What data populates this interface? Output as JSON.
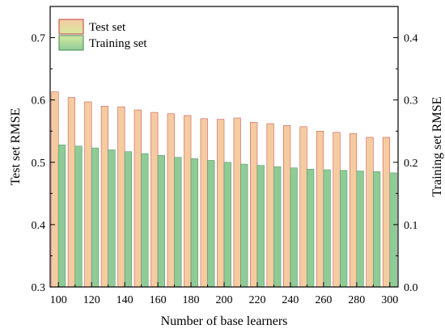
{
  "chart_data": {
    "type": "bar",
    "title": "",
    "xlabel": "Number of base learners",
    "ylabel_left": "Test set RMSE",
    "ylabel_right": "Training set RMSE",
    "categories": [
      100,
      110,
      120,
      130,
      140,
      150,
      160,
      170,
      180,
      190,
      200,
      210,
      220,
      230,
      240,
      250,
      260,
      270,
      280,
      290,
      300
    ],
    "x_tick_labels": [
      "100",
      "120",
      "140",
      "160",
      "180",
      "200",
      "220",
      "240",
      "260",
      "280",
      "300"
    ],
    "ylim_left": [
      0.3,
      0.75
    ],
    "ylim_right": [
      0.0,
      0.45
    ],
    "yticks_left": [
      "0.3",
      "0.4",
      "0.5",
      "0.6",
      "0.7"
    ],
    "yticks_right": [
      "0.0",
      "0.1",
      "0.2",
      "0.3",
      "0.4"
    ],
    "legend_position": "top-left",
    "grid": false,
    "series": [
      {
        "name": "Test set",
        "axis": "left",
        "color": "#f5cba0",
        "edge": "#c85a5a",
        "values": [
          0.613,
          0.604,
          0.597,
          0.59,
          0.589,
          0.584,
          0.58,
          0.578,
          0.575,
          0.57,
          0.569,
          0.571,
          0.564,
          0.562,
          0.559,
          0.557,
          0.55,
          0.548,
          0.546,
          0.54,
          0.54
        ]
      },
      {
        "name": "Training set",
        "axis": "right",
        "color": "#8fcb97",
        "edge": "#5b9a68",
        "values": [
          0.228,
          0.226,
          0.223,
          0.22,
          0.217,
          0.214,
          0.211,
          0.208,
          0.206,
          0.203,
          0.2,
          0.197,
          0.195,
          0.193,
          0.191,
          0.189,
          0.188,
          0.187,
          0.186,
          0.185,
          0.183
        ]
      }
    ],
    "legend_swatches": {
      "Test set": {
        "fill_top": "#f5cba0",
        "fill_bottom": "#d6e9a0",
        "edge": "#c85a5a"
      },
      "Training set": {
        "fill_top": "#d6e9a0",
        "fill_bottom": "#8fcb97",
        "edge": "#5b9a68"
      }
    }
  }
}
